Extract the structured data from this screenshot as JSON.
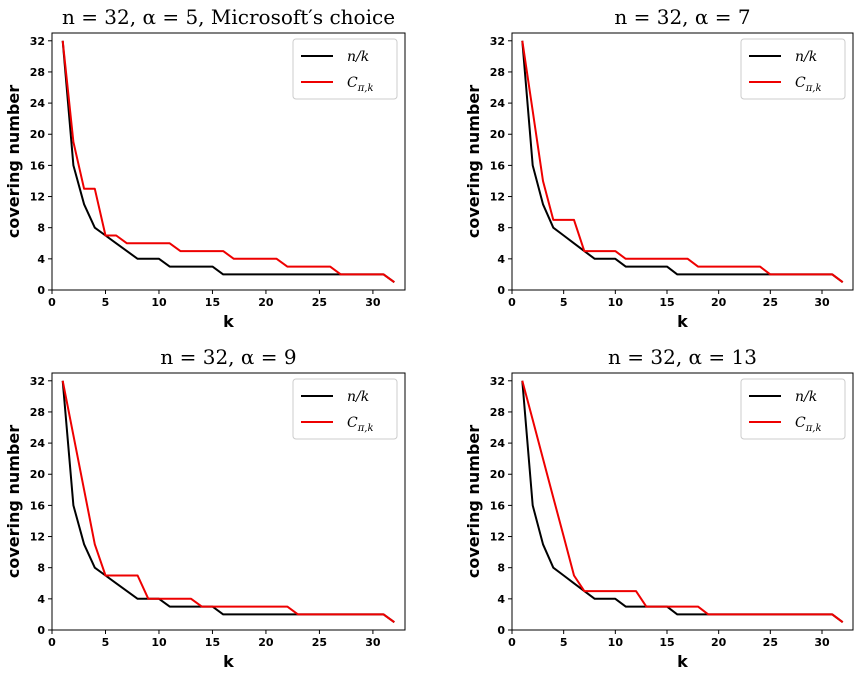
{
  "chart_data": [
    {
      "type": "line",
      "title": "n = 32, α = 5, Microsoft′s choice",
      "xlabel": "k",
      "ylabel": "covering number",
      "xlim": [
        0,
        33
      ],
      "ylim": [
        0,
        33
      ],
      "xticks": [
        0,
        5,
        10,
        15,
        20,
        25,
        30
      ],
      "yticks": [
        0,
        4,
        8,
        12,
        16,
        20,
        24,
        28,
        32
      ],
      "legend_position": "top-right",
      "x": [
        1,
        2,
        3,
        4,
        5,
        6,
        7,
        8,
        9,
        10,
        11,
        12,
        13,
        14,
        15,
        16,
        17,
        18,
        19,
        20,
        21,
        22,
        23,
        24,
        25,
        26,
        27,
        28,
        29,
        30,
        31,
        32
      ],
      "series": [
        {
          "name": "n/k",
          "color": "#000000",
          "values": [
            32,
            16,
            11,
            8,
            7,
            6,
            5,
            4,
            4,
            4,
            3,
            3,
            3,
            3,
            3,
            2,
            2,
            2,
            2,
            2,
            2,
            2,
            2,
            2,
            2,
            2,
            2,
            2,
            2,
            2,
            2,
            1
          ]
        },
        {
          "name": "C_{π,k}",
          "color": "#ee0000",
          "values": [
            32,
            19,
            13,
            13,
            7,
            7,
            6,
            6,
            6,
            6,
            6,
            5,
            5,
            5,
            5,
            5,
            4,
            4,
            4,
            4,
            4,
            3,
            3,
            3,
            3,
            3,
            2,
            2,
            2,
            2,
            2,
            1
          ]
        }
      ]
    },
    {
      "type": "line",
      "title": "n = 32, α = 7",
      "xlabel": "k",
      "ylabel": "covering number",
      "xlim": [
        0,
        33
      ],
      "ylim": [
        0,
        33
      ],
      "xticks": [
        0,
        5,
        10,
        15,
        20,
        25,
        30
      ],
      "yticks": [
        0,
        4,
        8,
        12,
        16,
        20,
        24,
        28,
        32
      ],
      "legend_position": "top-right",
      "x": [
        1,
        2,
        3,
        4,
        5,
        6,
        7,
        8,
        9,
        10,
        11,
        12,
        13,
        14,
        15,
        16,
        17,
        18,
        19,
        20,
        21,
        22,
        23,
        24,
        25,
        26,
        27,
        28,
        29,
        30,
        31,
        32
      ],
      "series": [
        {
          "name": "n/k",
          "color": "#000000",
          "values": [
            32,
            16,
            11,
            8,
            7,
            6,
            5,
            4,
            4,
            4,
            3,
            3,
            3,
            3,
            3,
            2,
            2,
            2,
            2,
            2,
            2,
            2,
            2,
            2,
            2,
            2,
            2,
            2,
            2,
            2,
            2,
            1
          ]
        },
        {
          "name": "C_{π,k}",
          "color": "#ee0000",
          "values": [
            32,
            23,
            14,
            9,
            9,
            9,
            5,
            5,
            5,
            5,
            4,
            4,
            4,
            4,
            4,
            4,
            4,
            3,
            3,
            3,
            3,
            3,
            3,
            3,
            2,
            2,
            2,
            2,
            2,
            2,
            2,
            1
          ]
        }
      ]
    },
    {
      "type": "line",
      "title": "n = 32, α = 9",
      "xlabel": "k",
      "ylabel": "covering number",
      "xlim": [
        0,
        33
      ],
      "ylim": [
        0,
        33
      ],
      "xticks": [
        0,
        5,
        10,
        15,
        20,
        25,
        30
      ],
      "yticks": [
        0,
        4,
        8,
        12,
        16,
        20,
        24,
        28,
        32
      ],
      "legend_position": "top-right",
      "x": [
        1,
        2,
        3,
        4,
        5,
        6,
        7,
        8,
        9,
        10,
        11,
        12,
        13,
        14,
        15,
        16,
        17,
        18,
        19,
        20,
        21,
        22,
        23,
        24,
        25,
        26,
        27,
        28,
        29,
        30,
        31,
        32
      ],
      "series": [
        {
          "name": "n/k",
          "color": "#000000",
          "values": [
            32,
            16,
            11,
            8,
            7,
            6,
            5,
            4,
            4,
            4,
            3,
            3,
            3,
            3,
            3,
            2,
            2,
            2,
            2,
            2,
            2,
            2,
            2,
            2,
            2,
            2,
            2,
            2,
            2,
            2,
            2,
            1
          ]
        },
        {
          "name": "C_{π,k}",
          "color": "#ee0000",
          "values": [
            32,
            25,
            18,
            11,
            7,
            7,
            7,
            7,
            4,
            4,
            4,
            4,
            4,
            3,
            3,
            3,
            3,
            3,
            3,
            3,
            3,
            3,
            2,
            2,
            2,
            2,
            2,
            2,
            2,
            2,
            2,
            1
          ]
        }
      ]
    },
    {
      "type": "line",
      "title": "n = 32, α = 13",
      "xlabel": "k",
      "ylabel": "covering number",
      "xlim": [
        0,
        33
      ],
      "ylim": [
        0,
        33
      ],
      "xticks": [
        0,
        5,
        10,
        15,
        20,
        25,
        30
      ],
      "yticks": [
        0,
        4,
        8,
        12,
        16,
        20,
        24,
        28,
        32
      ],
      "legend_position": "top-right",
      "x": [
        1,
        2,
        3,
        4,
        5,
        6,
        7,
        8,
        9,
        10,
        11,
        12,
        13,
        14,
        15,
        16,
        17,
        18,
        19,
        20,
        21,
        22,
        23,
        24,
        25,
        26,
        27,
        28,
        29,
        30,
        31,
        32
      ],
      "series": [
        {
          "name": "n/k",
          "color": "#000000",
          "values": [
            32,
            16,
            11,
            8,
            7,
            6,
            5,
            4,
            4,
            4,
            3,
            3,
            3,
            3,
            3,
            2,
            2,
            2,
            2,
            2,
            2,
            2,
            2,
            2,
            2,
            2,
            2,
            2,
            2,
            2,
            2,
            1
          ]
        },
        {
          "name": "C_{π,k}",
          "color": "#ee0000",
          "values": [
            32,
            27,
            22,
            17,
            12,
            7,
            5,
            5,
            5,
            5,
            5,
            5,
            3,
            3,
            3,
            3,
            3,
            3,
            2,
            2,
            2,
            2,
            2,
            2,
            2,
            2,
            2,
            2,
            2,
            2,
            2,
            1
          ]
        }
      ]
    }
  ]
}
